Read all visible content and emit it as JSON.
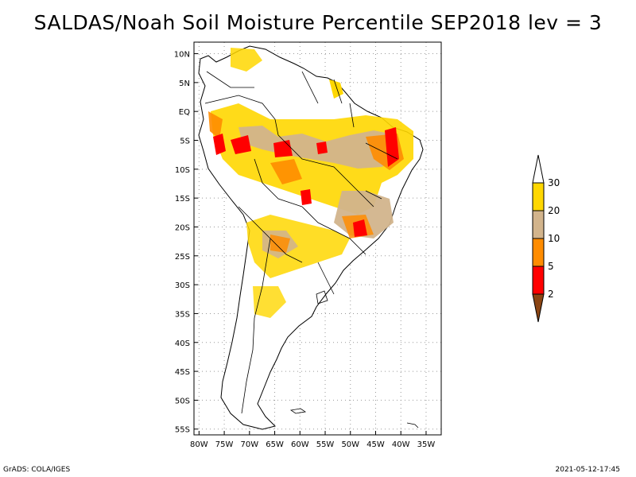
{
  "title": "SALDAS/Noah Soil Moisture Percentile SEP2018 lev = 3",
  "map": {
    "lat_labels": [
      "10N",
      "5N",
      "EQ",
      "5S",
      "10S",
      "15S",
      "20S",
      "25S",
      "30S",
      "35S",
      "40S",
      "45S",
      "50S",
      "55S"
    ],
    "lon_labels": [
      "80W",
      "75W",
      "70W",
      "65W",
      "60W",
      "55W",
      "50W",
      "45W",
      "40W",
      "35W"
    ],
    "lon_range": [
      -81,
      -32
    ],
    "lat_range": [
      -56,
      12
    ],
    "grid": true
  },
  "legend": {
    "labels": [
      "2",
      "5",
      "10",
      "20",
      "30"
    ],
    "bins": [
      {
        "range": "<2",
        "color": "#8b4513"
      },
      {
        "range": "2-5",
        "color": "#ff0000"
      },
      {
        "range": "5-10",
        "color": "#ff8c00"
      },
      {
        "range": "10-20",
        "color": "#d2b48c"
      },
      {
        "range": "20-30",
        "color": "#ffd700"
      },
      {
        "range": ">30",
        "color": "#ffffff"
      }
    ]
  },
  "footer": {
    "left": "GrADS: COLA/IGES",
    "right": "2021-05-12-17:45"
  }
}
